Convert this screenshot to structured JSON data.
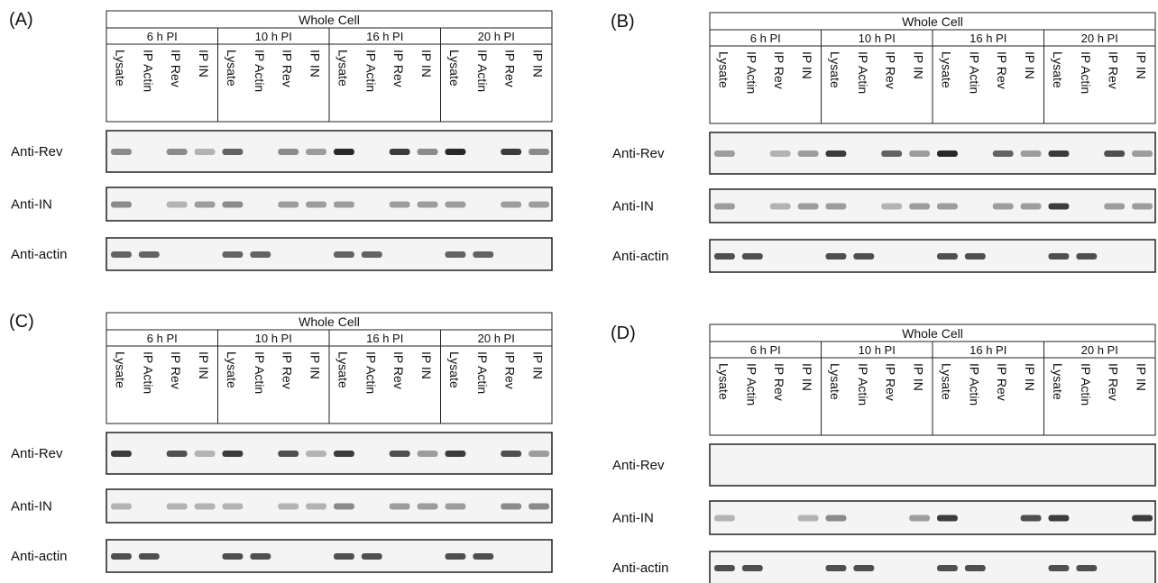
{
  "panels": [
    {
      "label": "(A)",
      "header": "Whole Cell",
      "timepoints": [
        "6 h PI",
        "10 h PI",
        "16 h PI",
        "20 h PI"
      ],
      "lanes": [
        "Lysate",
        "IP Actin",
        "IP Rev",
        "IP IN",
        "Lysate",
        "IP Actin",
        "IP Rev",
        "IP IN",
        "Lysate",
        "IP Actin",
        "IP Rev",
        "IP IN",
        "Lysate",
        "IP Actin",
        "IP Rev",
        "IP IN"
      ],
      "rows": [
        "Anti-Rev",
        "Anti-IN",
        "Anti-actin"
      ]
    },
    {
      "label": "(B)",
      "header": "Whole Cell",
      "timepoints": [
        "6 h PI",
        "10 h PI",
        "16 h PI",
        "20 h PI"
      ],
      "lanes": [
        "Lysate",
        "IP Actin",
        "IP Rev",
        "IP IN",
        "Lysate",
        "IP Actin",
        "IP Rev",
        "IP IN",
        "Lysate",
        "IP Actin",
        "IP Rev",
        "IP IN",
        "Lysate",
        "IP Actin",
        "IP Rev",
        "IP IN"
      ],
      "rows": [
        "Anti-Rev",
        "Anti-IN",
        "Anti-actin"
      ]
    },
    {
      "label": "(C)",
      "header": "Whole Cell",
      "timepoints": [
        "6 h PI",
        "10 h PI",
        "16 h PI",
        "20 h PI"
      ],
      "lanes": [
        "Lysate",
        "IP Actin",
        "IP Rev",
        "IP IN",
        "Lysate",
        "IP Actin",
        "IP Rev",
        "IP IN",
        "Lysate",
        "IP Actin",
        "IP Rev",
        "IP IN",
        "Lysate",
        "IP Actin",
        "IP Rev",
        "IP IN"
      ],
      "rows": [
        "Anti-Rev",
        "Anti-IN",
        "Anti-actin"
      ]
    },
    {
      "label": "(D)",
      "header": "Whole Cell",
      "timepoints": [
        "6 h PI",
        "10 h PI",
        "16 h PI",
        "20 h PI"
      ],
      "lanes": [
        "Lysate",
        "IP Actin",
        "IP Rev",
        "IP IN",
        "Lysate",
        "IP Actin",
        "IP Rev",
        "IP IN",
        "Lysate",
        "IP Actin",
        "IP Rev",
        "IP IN",
        "Lysate",
        "IP Actin",
        "IP Rev",
        "IP IN"
      ],
      "rows": [
        "Anti-Rev",
        "Anti-IN",
        "Anti-actin"
      ]
    }
  ]
}
